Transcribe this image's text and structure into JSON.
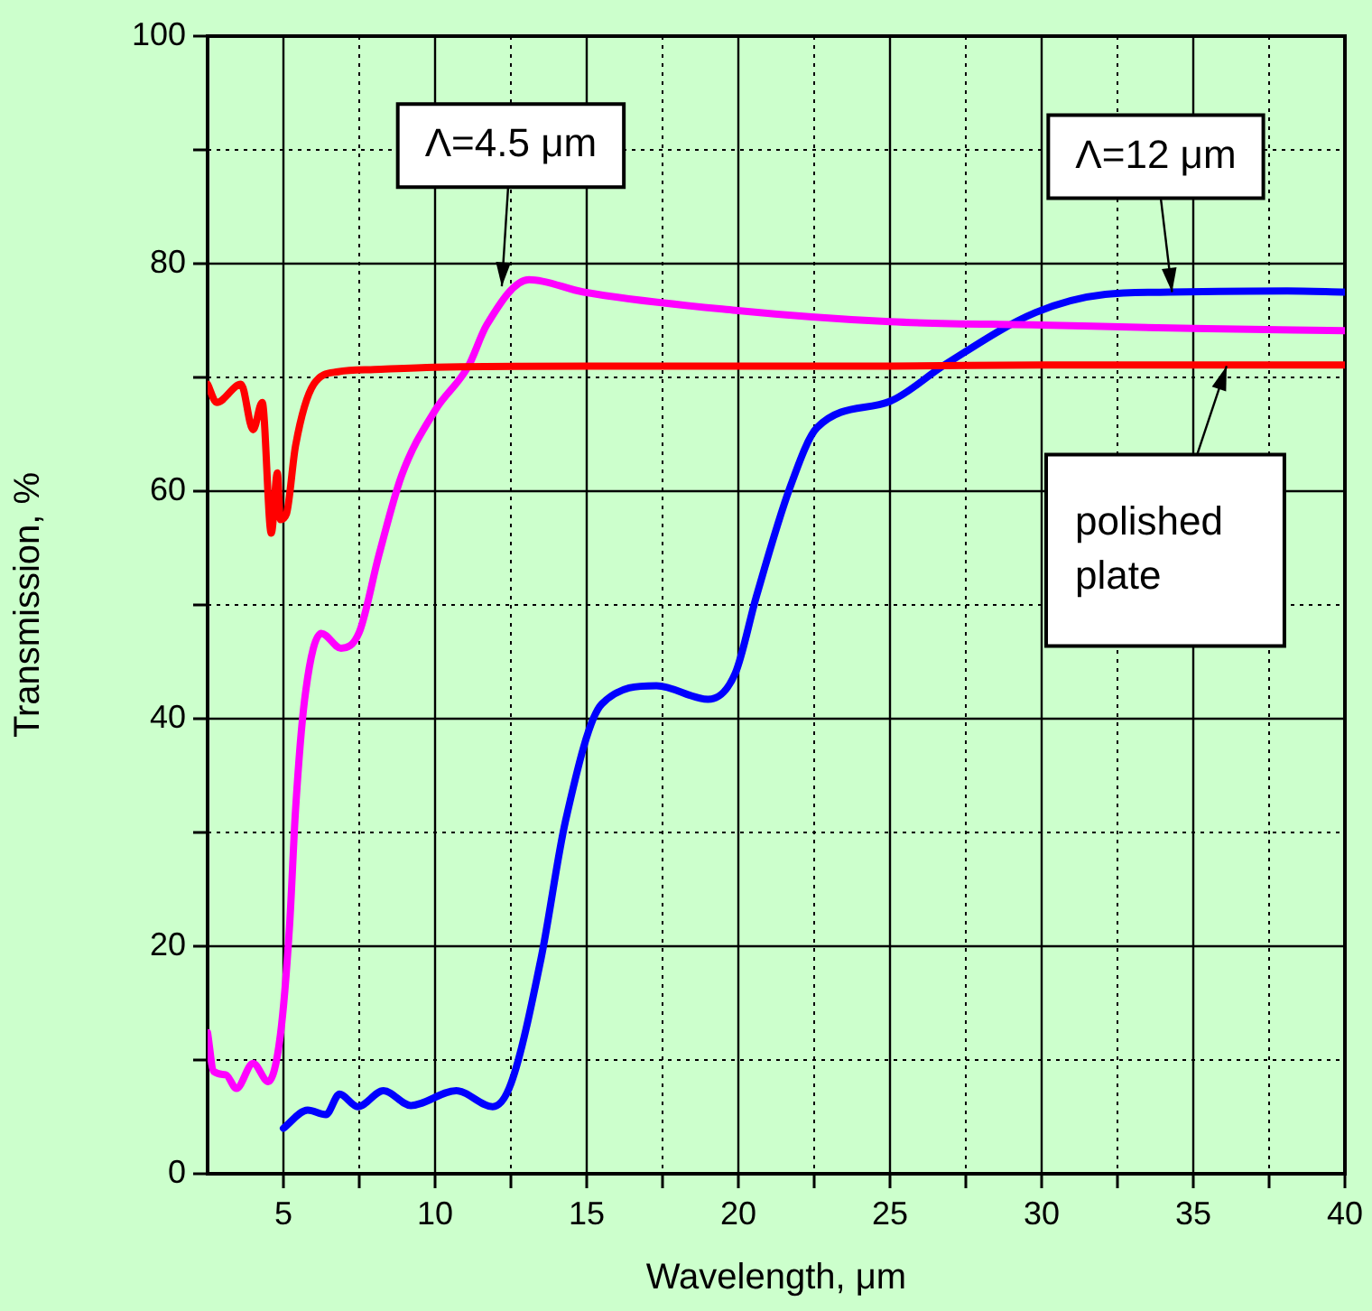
{
  "chart_data": {
    "type": "line",
    "xlabel": "Wavelength, μm",
    "ylabel": "Transmission, %",
    "xlim": [
      2.5,
      40
    ],
    "ylim": [
      0,
      100
    ],
    "xticks": [
      5,
      {
        "value": 7.5,
        "label": null
      },
      10,
      {
        "value": 12.5,
        "label": null
      },
      15,
      {
        "value": 17.5,
        "label": null
      },
      20,
      {
        "value": 22.5,
        "label": null
      },
      25,
      {
        "value": 27.5,
        "label": null
      },
      30,
      {
        "value": 32.5,
        "label": null
      },
      35,
      {
        "value": 37.5,
        "label": null
      },
      40
    ],
    "yticks": [
      0,
      {
        "value": 10,
        "label": null
      },
      20,
      {
        "value": 30,
        "label": null
      },
      40,
      {
        "value": 50,
        "label": null
      },
      60,
      {
        "value": 70,
        "label": null
      },
      80,
      {
        "value": 90,
        "label": null
      },
      100
    ],
    "grid": true,
    "legend": false,
    "marker": "none",
    "line_style": "solid",
    "series": [
      {
        "color": "#ff0000",
        "x": [
          2.5,
          2.8,
          3.6,
          4.0,
          4.3,
          4.6,
          4.8,
          4.9,
          5.1,
          5.4,
          6.0,
          6.8,
          8,
          10,
          15,
          20,
          25,
          30,
          35,
          40
        ],
        "values": [
          69.4,
          67.8,
          69.4,
          65.4,
          67.8,
          56.3,
          61.6,
          57.5,
          58,
          64,
          69.4,
          70.5,
          70.7,
          70.9,
          71,
          71,
          71,
          71.1,
          71.1,
          71.1
        ]
      },
      {
        "color": "#ff00ff",
        "x": [
          2.5,
          2.7,
          3.1,
          3.45,
          4.0,
          4.5,
          4.9,
          5.2,
          5.4,
          5.7,
          6.25,
          6.9,
          7.5,
          8.15,
          8.9,
          10,
          11.1,
          11.7,
          13.1,
          14.9,
          19.9,
          25,
          30,
          35,
          40
        ],
        "values": [
          12.4,
          9,
          8.7,
          7.5,
          9.7,
          8.1,
          12.2,
          21.7,
          32,
          41.7,
          47.5,
          46.2,
          47.6,
          54.4,
          61.4,
          67.1,
          71,
          74.6,
          78.6,
          77.5,
          75.9,
          74.9,
          74.6,
          74.3,
          74.1
        ]
      },
      {
        "color": "#0000ff",
        "x": [
          5,
          5.8,
          6.4,
          6.85,
          7.45,
          8.3,
          9.2,
          10.7,
          11.9,
          12.5,
          13.5,
          14.3,
          15.5,
          17.3,
          19.0,
          19.9,
          20.6,
          21.7,
          22.6,
          25,
          26.8,
          29.8,
          32.1,
          34.2,
          38.1,
          40
        ],
        "values": [
          4.0,
          5.6,
          5.2,
          7.0,
          5.9,
          7.3,
          6.0,
          7.3,
          5.9,
          7.9,
          19,
          31,
          41.3,
          42.9,
          41.7,
          44,
          50.8,
          60.3,
          65.6,
          67.9,
          71.1,
          75.7,
          77.3,
          77.5,
          77.6,
          77.5
        ]
      }
    ],
    "annotations": [
      {
        "text": "Λ=4.5 μm",
        "x": 12.2,
        "y": 78
      },
      {
        "text": "Λ=12 μm",
        "x": 34.3,
        "y": 77.5
      },
      {
        "text": "polished plate",
        "x": 36.1,
        "y": 71
      }
    ]
  }
}
